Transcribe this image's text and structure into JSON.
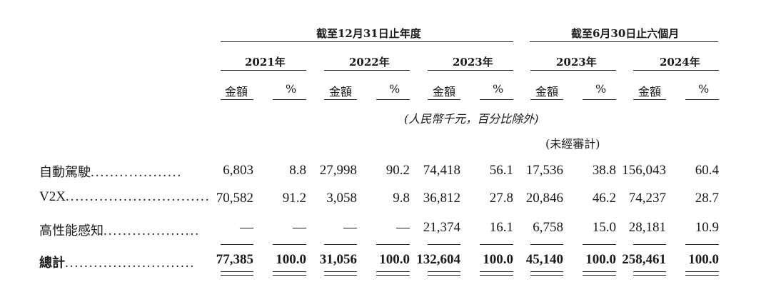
{
  "header": {
    "group_year_end": "截至12月31日止年度",
    "group_half_year": "截至6月30日止六個月",
    "years": [
      "2021年",
      "2022年",
      "2023年",
      "2023年",
      "2024年"
    ],
    "amount_label": "金額",
    "percent_label": "%",
    "unit_note": "(人民幣千元，百分比除外)",
    "unaudited_note": "(未經審計)"
  },
  "rows": [
    {
      "label": "自動駕駛",
      "dots": "...................",
      "values": [
        "6,803",
        "8.8",
        "27,998",
        "90.2",
        "74,418",
        "56.1",
        "17,536",
        "38.8",
        "156,043",
        "60.4"
      ]
    },
    {
      "label": "V2X",
      "dots": "..............................",
      "values": [
        "70,582",
        "91.2",
        "3,058",
        "9.8",
        "36,812",
        "27.8",
        "20,846",
        "46.2",
        "74,237",
        "28.7"
      ]
    },
    {
      "label": "高性能感知",
      "dots": "....................",
      "values": [
        "—",
        "—",
        "—",
        "—",
        "21,374",
        "16.1",
        "6,758",
        "15.0",
        "28,181",
        "10.9"
      ]
    }
  ],
  "total": {
    "label": "總計",
    "dots": "...........................",
    "values": [
      "77,385",
      "100.0",
      "31,056",
      "100.0",
      "132,604",
      "100.0",
      "45,140",
      "100.0",
      "258,461",
      "100.0"
    ]
  }
}
